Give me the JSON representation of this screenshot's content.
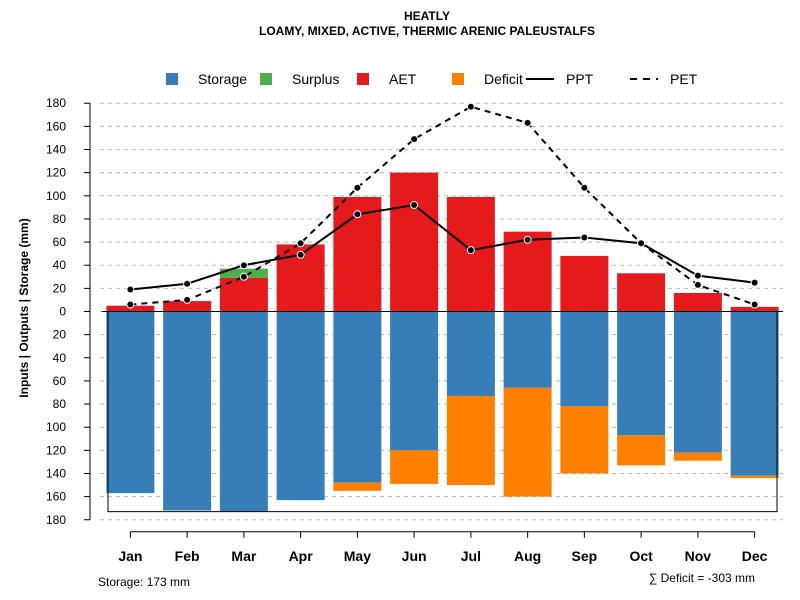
{
  "chart_data": {
    "type": "bar",
    "title": "HEATLY",
    "subtitle": "LOAMY, MIXED, ACTIVE, THERMIC ARENIC PALEUSTALFS",
    "ylabel": "Inputs | Outputs | Storage    (mm)",
    "xlabel": "",
    "ylim": [
      -180,
      180
    ],
    "yticks": [
      180,
      160,
      140,
      120,
      100,
      80,
      60,
      40,
      20,
      0,
      -20,
      -40,
      -60,
      -80,
      -100,
      -120,
      -140,
      -160,
      -180
    ],
    "ytick_labels": [
      "180",
      "160",
      "140",
      "120",
      "100",
      "80",
      "60",
      "40",
      "20",
      "0",
      "20",
      "40",
      "60",
      "80",
      "100",
      "120",
      "140",
      "160",
      "180"
    ],
    "categories": [
      "Jan",
      "Feb",
      "Mar",
      "Apr",
      "May",
      "Jun",
      "Jul",
      "Aug",
      "Sep",
      "Oct",
      "Nov",
      "Dec"
    ],
    "series": [
      {
        "name": "Storage",
        "kind": "bar-below",
        "color": "#377EB8",
        "values": [
          157,
          172,
          173,
          163,
          148,
          120,
          73,
          66,
          82,
          107,
          122,
          142
        ]
      },
      {
        "name": "Deficit",
        "kind": "bar-below-stacked",
        "color": "#FF7F00",
        "values": [
          0,
          0,
          0,
          0,
          7,
          29,
          77,
          94,
          58,
          26,
          7,
          2
        ]
      },
      {
        "name": "AET",
        "kind": "bar-above",
        "color": "#E41A1C",
        "values": [
          5,
          9,
          29,
          58,
          99,
          120,
          99,
          69,
          48,
          33,
          16,
          4
        ]
      },
      {
        "name": "Surplus",
        "kind": "bar-above-stacked",
        "color": "#4DAF4A",
        "values": [
          0,
          0,
          8,
          0,
          0,
          0,
          0,
          0,
          0,
          0,
          0,
          0
        ]
      },
      {
        "name": "PPT",
        "kind": "line-solid",
        "color": "#000000",
        "values": [
          19,
          24,
          40,
          49,
          84,
          92,
          53,
          62,
          64,
          59,
          31,
          25
        ]
      },
      {
        "name": "PET",
        "kind": "line-dashed",
        "color": "#000000",
        "values": [
          6,
          10,
          30,
          59,
          107,
          149,
          177,
          163,
          107,
          59,
          23,
          6
        ]
      }
    ],
    "storage_capacity": 173,
    "legend": {
      "position": "top",
      "entries": [
        {
          "label": "Storage",
          "color": "#377EB8",
          "symbol": "square"
        },
        {
          "label": "Surplus",
          "color": "#4DAF4A",
          "symbol": "square"
        },
        {
          "label": "AET",
          "color": "#E41A1C",
          "symbol": "square"
        },
        {
          "label": "Deficit",
          "color": "#FF7F00",
          "symbol": "square"
        },
        {
          "label": "PPT",
          "color": "#000000",
          "symbol": "line-solid"
        },
        {
          "label": "PET",
          "color": "#000000",
          "symbol": "line-dashed"
        }
      ]
    },
    "grid": true,
    "notes": {
      "storage": "Storage: 173 mm",
      "deficit": "∑ Deficit = -303 mm"
    }
  }
}
